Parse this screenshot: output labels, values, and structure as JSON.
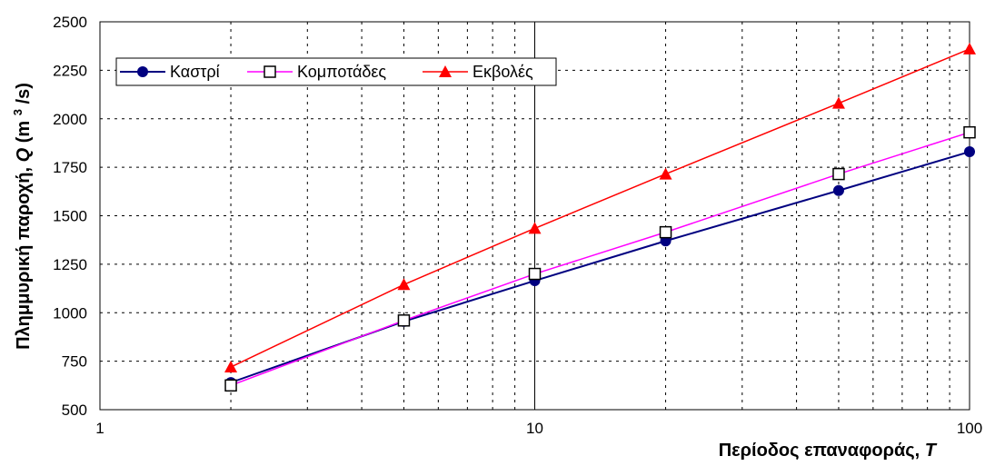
{
  "chart_data": {
    "type": "line",
    "x_scale": "log",
    "xlim": [
      1,
      100
    ],
    "ylim": [
      500,
      2500
    ],
    "x_ticks": [
      "1",
      "10",
      "100"
    ],
    "y_ticks": [
      "500",
      "750",
      "1000",
      "1250",
      "1500",
      "1750",
      "2000",
      "2250",
      "2500"
    ],
    "grid": true,
    "legend_position": "top-left",
    "xlabel": "Περίοδος επαναφοράς,",
    "xlabel_symbol": "T",
    "ylabel": "Πλημμυρική παροχή,",
    "ylabel_symbol": "Q",
    "ylabel_unit_before": "(m",
    "ylabel_unit_sup": "3",
    "ylabel_unit_after": "/s)",
    "x": [
      2,
      5,
      10,
      20,
      50,
      100
    ],
    "series": [
      {
        "name": "Καστρί",
        "values": [
          640,
          955,
          1165,
          1370,
          1630,
          1830
        ],
        "color": "#000080",
        "marker": "circle"
      },
      {
        "name": "Κομποτάδες",
        "values": [
          625,
          960,
          1200,
          1415,
          1715,
          1930
        ],
        "color": "#ff00ff",
        "marker": "square"
      },
      {
        "name": "Εκβολές",
        "values": [
          720,
          1145,
          1435,
          1715,
          2080,
          2360
        ],
        "color": "#ff0000",
        "marker": "triangle"
      }
    ]
  }
}
